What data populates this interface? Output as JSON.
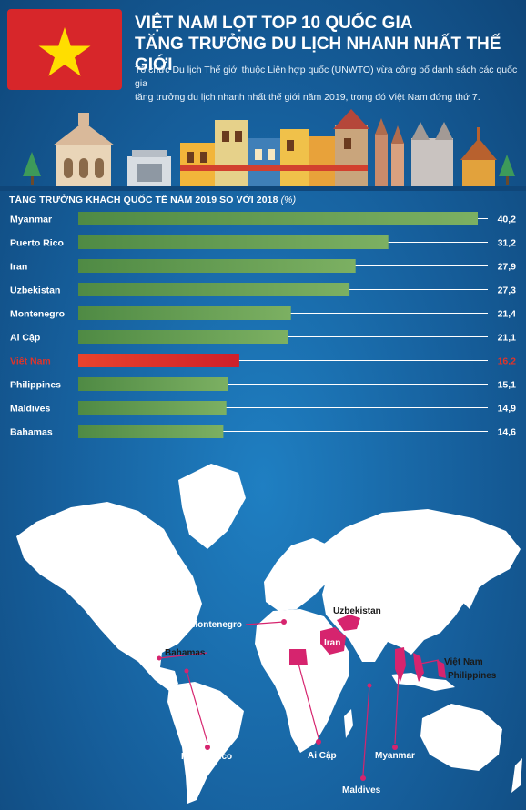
{
  "header": {
    "title_line1": "VIỆT NAM LỌT TOP 10 QUỐC GIA",
    "title_line2": "TĂNG TRƯỞNG DU LỊCH NHANH NHẤT THẾ GIỚI",
    "subtitle_line1": "Tổ chức Du lịch Thế giới thuộc Liên hợp quốc (UNWTO) vừa công bố danh sách các quốc gia",
    "subtitle_line2": "tăng trưởng du lịch nhanh nhất thế giới năm 2019, trong đó Việt Nam đứng thứ 7."
  },
  "colors": {
    "flag_red": "#d7262a",
    "star_yellow": "#ffde00",
    "bar_green": "#6ba054",
    "highlight_red": "#e03a2a",
    "map_pink": "#d6246e"
  },
  "chart_data": {
    "type": "bar",
    "orientation": "horizontal",
    "title": "TĂNG TRƯỞNG KHÁCH QUỐC TẾ NĂM 2019 SO VỚI 2018",
    "unit": "(%)",
    "categories": [
      "Myanmar",
      "Puerto Rico",
      "Iran",
      "Uzbekistan",
      "Montenegro",
      "Ai Cập",
      "Việt Nam",
      "Philippines",
      "Maldives",
      "Bahamas"
    ],
    "values": [
      40.2,
      31.2,
      27.9,
      27.3,
      21.4,
      21.1,
      16.2,
      15.1,
      14.9,
      14.6
    ],
    "value_labels": [
      "40,2",
      "31,2",
      "27,9",
      "27,3",
      "21,4",
      "21,1",
      "16,2",
      "15,1",
      "14,9",
      "14,6"
    ],
    "highlight": "Việt Nam",
    "xlim": [
      0,
      40.2
    ],
    "grid": false,
    "legend": "none"
  },
  "map": {
    "labels": {
      "uzbekistan": "Uzbekistan",
      "iran": "Iran",
      "montenegro": "Montenegro",
      "bahamas": "Bahamas",
      "vietnam": "Việt Nam",
      "philippines": "Philippines",
      "puerto_rico": "Puerto Rico",
      "egypt": "Ai Cập",
      "myanmar": "Myanmar",
      "maldives": "Maldives"
    }
  }
}
